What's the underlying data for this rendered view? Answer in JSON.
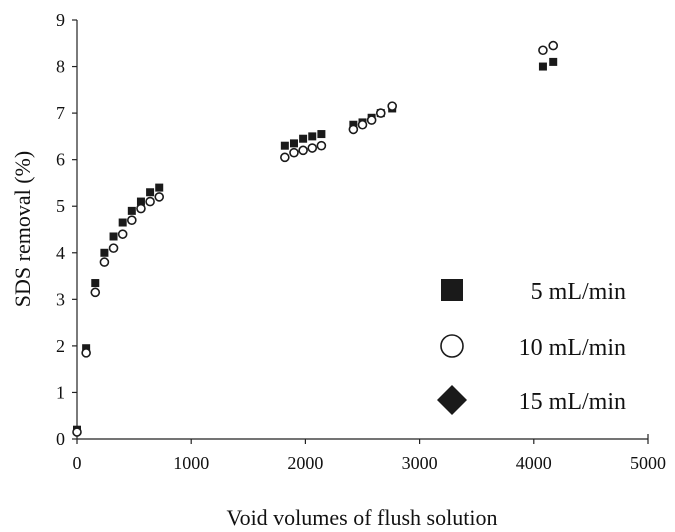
{
  "chart_data": {
    "type": "scatter",
    "title": "",
    "xlabel": "Void volumes of flush solution",
    "ylabel": "SDS removal (%)",
    "xlim": [
      0,
      5000
    ],
    "ylim": [
      0,
      9
    ],
    "xticks": [
      "0",
      "1000",
      "2000",
      "3000",
      "4000",
      "5000"
    ],
    "yticks": [
      "0",
      "1",
      "2",
      "3",
      "4",
      "5",
      "6",
      "7",
      "8",
      "9"
    ],
    "grid": false,
    "legend_position": "right",
    "series": [
      {
        "name": "5 mL/min",
        "marker": "square",
        "color": "#1a1a1a",
        "points": [
          [
            0,
            0.2
          ],
          [
            80,
            1.95
          ],
          [
            160,
            3.35
          ],
          [
            240,
            4.0
          ],
          [
            320,
            4.35
          ],
          [
            400,
            4.65
          ],
          [
            480,
            4.9
          ],
          [
            560,
            5.1
          ],
          [
            640,
            5.3
          ],
          [
            720,
            5.4
          ],
          [
            1820,
            6.3
          ],
          [
            1900,
            6.35
          ],
          [
            1980,
            6.45
          ],
          [
            2060,
            6.5
          ],
          [
            2140,
            6.55
          ],
          [
            2420,
            6.75
          ],
          [
            2500,
            6.8
          ],
          [
            2580,
            6.9
          ],
          [
            2660,
            7.0
          ],
          [
            2760,
            7.1
          ],
          [
            4080,
            8.0
          ],
          [
            4170,
            8.1
          ]
        ]
      },
      {
        "name": "10 mL/min",
        "marker": "circle",
        "color": "#1a1a1a",
        "points": [
          [
            0,
            0.15
          ],
          [
            80,
            1.85
          ],
          [
            160,
            3.15
          ],
          [
            240,
            3.8
          ],
          [
            320,
            4.1
          ],
          [
            400,
            4.4
          ],
          [
            480,
            4.7
          ],
          [
            560,
            4.95
          ],
          [
            640,
            5.1
          ],
          [
            720,
            5.2
          ],
          [
            1820,
            6.05
          ],
          [
            1900,
            6.15
          ],
          [
            1980,
            6.2
          ],
          [
            2060,
            6.25
          ],
          [
            2140,
            6.3
          ],
          [
            2420,
            6.65
          ],
          [
            2500,
            6.75
          ],
          [
            2580,
            6.85
          ],
          [
            2660,
            7.0
          ],
          [
            2760,
            7.15
          ],
          [
            4080,
            8.35
          ],
          [
            4170,
            8.45
          ]
        ]
      },
      {
        "name": "15 mL/min",
        "marker": "diamond",
        "color": "#1a1a1a",
        "points": []
      }
    ]
  }
}
